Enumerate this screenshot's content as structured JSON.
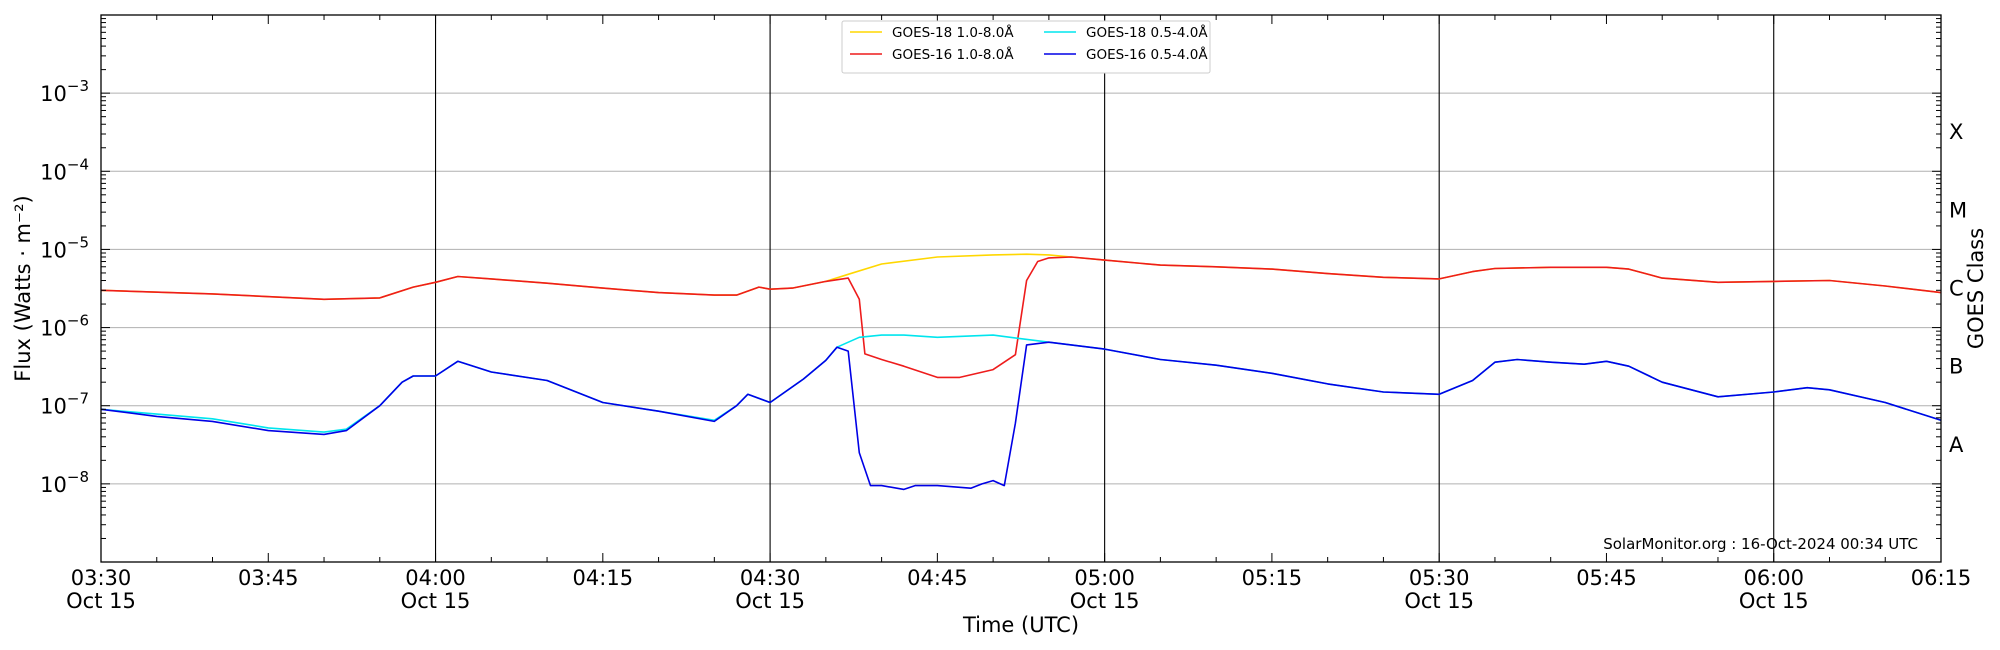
{
  "chart_data": {
    "type": "line",
    "xlabel": "Time (UTC)",
    "ylabel": "Flux (Watts · m⁻²)",
    "y2label": "GOES Class",
    "y_scale": "log",
    "ylim": [
      1e-09,
      0.01
    ],
    "xlim": [
      "03:30",
      "06:15"
    ],
    "grid": "horizontal at decades; vertical lines every 30 minutes",
    "legend_position": "top-center",
    "credit": "SolarMonitor.org : 16-Oct-2024 00:34 UTC",
    "x_ticks": [
      {
        "time": "03:30",
        "date": "Oct 15"
      },
      {
        "time": "03:45",
        "date": ""
      },
      {
        "time": "04:00",
        "date": "Oct 15"
      },
      {
        "time": "04:15",
        "date": ""
      },
      {
        "time": "04:30",
        "date": "Oct 15"
      },
      {
        "time": "04:45",
        "date": ""
      },
      {
        "time": "05:00",
        "date": "Oct 15"
      },
      {
        "time": "05:15",
        "date": ""
      },
      {
        "time": "05:30",
        "date": "Oct 15"
      },
      {
        "time": "05:45",
        "date": ""
      },
      {
        "time": "06:00",
        "date": "Oct 15"
      },
      {
        "time": "06:15",
        "date": ""
      }
    ],
    "y_ticks": [
      {
        "exp": -8,
        "base": "10",
        "sup": "−8"
      },
      {
        "exp": -7,
        "base": "10",
        "sup": "−7"
      },
      {
        "exp": -6,
        "base": "10",
        "sup": "−6"
      },
      {
        "exp": -5,
        "base": "10",
        "sup": "−5"
      },
      {
        "exp": -4,
        "base": "10",
        "sup": "−4"
      },
      {
        "exp": -3,
        "base": "10",
        "sup": "−3"
      }
    ],
    "goes_classes": [
      {
        "label": "A",
        "exp": -7.5
      },
      {
        "label": "B",
        "exp": -6.5
      },
      {
        "label": "C",
        "exp": -5.5
      },
      {
        "label": "M",
        "exp": -4.5
      },
      {
        "label": "X",
        "exp": -3.5
      }
    ],
    "series": [
      {
        "name": "GOES-18 1.0-8.0Å",
        "color": "#ffd700",
        "points": [
          [
            "03:30",
            3e-06
          ],
          [
            "03:40",
            2.7e-06
          ],
          [
            "03:50",
            2.3e-06
          ],
          [
            "03:55",
            2.4e-06
          ],
          [
            "03:58",
            3.3e-06
          ],
          [
            "04:00",
            3.8e-06
          ],
          [
            "04:02",
            4.5e-06
          ],
          [
            "04:05",
            4.2e-06
          ],
          [
            "04:10",
            3.7e-06
          ],
          [
            "04:15",
            3.2e-06
          ],
          [
            "04:20",
            2.8e-06
          ],
          [
            "04:25",
            2.6e-06
          ],
          [
            "04:27",
            2.6e-06
          ],
          [
            "04:29",
            3.3e-06
          ],
          [
            "04:30",
            3.1e-06
          ],
          [
            "04:32",
            3.2e-06
          ],
          [
            "04:35",
            3.9e-06
          ],
          [
            "04:37",
            4.8e-06
          ],
          [
            "04:40",
            6.5e-06
          ],
          [
            "04:45",
            8e-06
          ],
          [
            "04:50",
            8.5e-06
          ],
          [
            "04:53",
            8.7e-06
          ],
          [
            "04:55",
            8.5e-06
          ],
          [
            "04:57",
            8e-06
          ],
          [
            "05:00",
            7.3e-06
          ],
          [
            "05:05",
            6.3e-06
          ],
          [
            "05:10",
            6e-06
          ],
          [
            "05:15",
            5.6e-06
          ],
          [
            "05:20",
            4.9e-06
          ],
          [
            "05:25",
            4.4e-06
          ],
          [
            "05:30",
            4.2e-06
          ],
          [
            "05:33",
            5.2e-06
          ],
          [
            "05:35",
            5.7e-06
          ],
          [
            "05:40",
            5.9e-06
          ],
          [
            "05:45",
            5.9e-06
          ],
          [
            "05:47",
            5.6e-06
          ],
          [
            "05:50",
            4.3e-06
          ],
          [
            "05:55",
            3.8e-06
          ],
          [
            "06:00",
            3.9e-06
          ],
          [
            "06:05",
            4e-06
          ],
          [
            "06:10",
            3.4e-06
          ],
          [
            "06:15",
            2.8e-06
          ]
        ]
      },
      {
        "name": "GOES-16 1.0-8.0Å",
        "color": "#ee1c1c",
        "points": [
          [
            "03:30",
            3e-06
          ],
          [
            "03:40",
            2.7e-06
          ],
          [
            "03:50",
            2.3e-06
          ],
          [
            "03:55",
            2.4e-06
          ],
          [
            "03:58",
            3.3e-06
          ],
          [
            "04:00",
            3.8e-06
          ],
          [
            "04:02",
            4.5e-06
          ],
          [
            "04:05",
            4.2e-06
          ],
          [
            "04:10",
            3.7e-06
          ],
          [
            "04:15",
            3.2e-06
          ],
          [
            "04:20",
            2.8e-06
          ],
          [
            "04:25",
            2.6e-06
          ],
          [
            "04:27",
            2.6e-06
          ],
          [
            "04:29",
            3.3e-06
          ],
          [
            "04:30",
            3.1e-06
          ],
          [
            "04:32",
            3.2e-06
          ],
          [
            "04:35",
            3.9e-06
          ],
          [
            "04:37",
            4.3e-06
          ],
          [
            "04:38",
            2.3e-06
          ],
          [
            "04:38.5",
            4.6e-07
          ],
          [
            "04:40",
            3.9e-07
          ],
          [
            "04:42",
            3.2e-07
          ],
          [
            "04:45",
            2.3e-07
          ],
          [
            "04:47",
            2.3e-07
          ],
          [
            "04:50",
            2.9e-07
          ],
          [
            "04:52",
            4.5e-07
          ],
          [
            "04:53",
            4e-06
          ],
          [
            "04:54",
            7e-06
          ],
          [
            "04:55",
            7.8e-06
          ],
          [
            "04:57",
            8e-06
          ],
          [
            "05:00",
            7.3e-06
          ],
          [
            "05:05",
            6.3e-06
          ],
          [
            "05:10",
            6e-06
          ],
          [
            "05:15",
            5.6e-06
          ],
          [
            "05:20",
            4.9e-06
          ],
          [
            "05:25",
            4.4e-06
          ],
          [
            "05:30",
            4.2e-06
          ],
          [
            "05:33",
            5.2e-06
          ],
          [
            "05:35",
            5.7e-06
          ],
          [
            "05:40",
            5.9e-06
          ],
          [
            "05:45",
            5.9e-06
          ],
          [
            "05:47",
            5.6e-06
          ],
          [
            "05:50",
            4.3e-06
          ],
          [
            "05:55",
            3.8e-06
          ],
          [
            "06:00",
            3.9e-06
          ],
          [
            "06:05",
            4e-06
          ],
          [
            "06:10",
            3.4e-06
          ],
          [
            "06:15",
            2.8e-06
          ]
        ]
      },
      {
        "name": "GOES-18 0.5-4.0Å",
        "color": "#00e5ee",
        "points": [
          [
            "03:30",
            9e-08
          ],
          [
            "03:35",
            7.8e-08
          ],
          [
            "03:40",
            6.8e-08
          ],
          [
            "03:45",
            5.2e-08
          ],
          [
            "03:50",
            4.6e-08
          ],
          [
            "03:52",
            5e-08
          ],
          [
            "03:55",
            1e-07
          ],
          [
            "03:57",
            2e-07
          ],
          [
            "03:58",
            2.4e-07
          ],
          [
            "04:00",
            2.4e-07
          ],
          [
            "04:02",
            3.7e-07
          ],
          [
            "04:05",
            2.7e-07
          ],
          [
            "04:10",
            2.1e-07
          ],
          [
            "04:15",
            1.1e-07
          ],
          [
            "04:20",
            8.5e-08
          ],
          [
            "04:25",
            6.5e-08
          ],
          [
            "04:27",
            1e-07
          ],
          [
            "04:28",
            1.4e-07
          ],
          [
            "04:30",
            1.1e-07
          ],
          [
            "04:33",
            2.2e-07
          ],
          [
            "04:35",
            3.8e-07
          ],
          [
            "04:36",
            5.6e-07
          ],
          [
            "04:38",
            7.5e-07
          ],
          [
            "04:40",
            8e-07
          ],
          [
            "04:42",
            8e-07
          ],
          [
            "04:45",
            7.5e-07
          ],
          [
            "04:50",
            8e-07
          ],
          [
            "04:55",
            6.5e-07
          ],
          [
            "05:00",
            5.3e-07
          ],
          [
            "05:05",
            3.9e-07
          ],
          [
            "05:10",
            3.3e-07
          ],
          [
            "05:15",
            2.6e-07
          ],
          [
            "05:20",
            1.9e-07
          ],
          [
            "05:25",
            1.5e-07
          ],
          [
            "05:30",
            1.4e-07
          ],
          [
            "05:33",
            2.1e-07
          ],
          [
            "05:35",
            3.6e-07
          ],
          [
            "05:37",
            3.9e-07
          ],
          [
            "05:40",
            3.6e-07
          ],
          [
            "05:43",
            3.4e-07
          ],
          [
            "05:45",
            3.7e-07
          ],
          [
            "05:47",
            3.2e-07
          ],
          [
            "05:50",
            2e-07
          ],
          [
            "05:55",
            1.3e-07
          ],
          [
            "06:00",
            1.5e-07
          ],
          [
            "06:03",
            1.7e-07
          ],
          [
            "06:05",
            1.6e-07
          ],
          [
            "06:10",
            1.1e-07
          ],
          [
            "06:15",
            6.5e-08
          ]
        ]
      },
      {
        "name": "GOES-16 0.5-4.0Å",
        "color": "#0000e6",
        "points": [
          [
            "03:30",
            9e-08
          ],
          [
            "03:35",
            7.3e-08
          ],
          [
            "03:40",
            6.3e-08
          ],
          [
            "03:45",
            4.8e-08
          ],
          [
            "03:50",
            4.3e-08
          ],
          [
            "03:52",
            4.8e-08
          ],
          [
            "03:55",
            1e-07
          ],
          [
            "03:57",
            2e-07
          ],
          [
            "03:58",
            2.4e-07
          ],
          [
            "04:00",
            2.4e-07
          ],
          [
            "04:02",
            3.7e-07
          ],
          [
            "04:05",
            2.7e-07
          ],
          [
            "04:10",
            2.1e-07
          ],
          [
            "04:15",
            1.1e-07
          ],
          [
            "04:20",
            8.5e-08
          ],
          [
            "04:25",
            6.3e-08
          ],
          [
            "04:27",
            1e-07
          ],
          [
            "04:28",
            1.4e-07
          ],
          [
            "04:30",
            1.1e-07
          ],
          [
            "04:33",
            2.2e-07
          ],
          [
            "04:35",
            3.8e-07
          ],
          [
            "04:36",
            5.6e-07
          ],
          [
            "04:37",
            5e-07
          ],
          [
            "04:38",
            2.5e-08
          ],
          [
            "04:39",
            9.5e-09
          ],
          [
            "04:40",
            9.5e-09
          ],
          [
            "04:42",
            8.5e-09
          ],
          [
            "04:43",
            9.5e-09
          ],
          [
            "04:45",
            9.5e-09
          ],
          [
            "04:48",
            8.8e-09
          ],
          [
            "04:49",
            1e-08
          ],
          [
            "04:50",
            1.1e-08
          ],
          [
            "04:51",
            9.5e-09
          ],
          [
            "04:52",
            6e-08
          ],
          [
            "04:53",
            6e-07
          ],
          [
            "04:55",
            6.5e-07
          ],
          [
            "05:00",
            5.3e-07
          ],
          [
            "05:05",
            3.9e-07
          ],
          [
            "05:10",
            3.3e-07
          ],
          [
            "05:15",
            2.6e-07
          ],
          [
            "05:20",
            1.9e-07
          ],
          [
            "05:25",
            1.5e-07
          ],
          [
            "05:30",
            1.4e-07
          ],
          [
            "05:33",
            2.1e-07
          ],
          [
            "05:35",
            3.6e-07
          ],
          [
            "05:37",
            3.9e-07
          ],
          [
            "05:40",
            3.6e-07
          ],
          [
            "05:43",
            3.4e-07
          ],
          [
            "05:45",
            3.7e-07
          ],
          [
            "05:47",
            3.2e-07
          ],
          [
            "05:50",
            2e-07
          ],
          [
            "05:55",
            1.3e-07
          ],
          [
            "06:00",
            1.5e-07
          ],
          [
            "06:03",
            1.7e-07
          ],
          [
            "06:05",
            1.6e-07
          ],
          [
            "06:10",
            1.1e-07
          ],
          [
            "06:15",
            6.5e-08
          ]
        ]
      }
    ]
  }
}
